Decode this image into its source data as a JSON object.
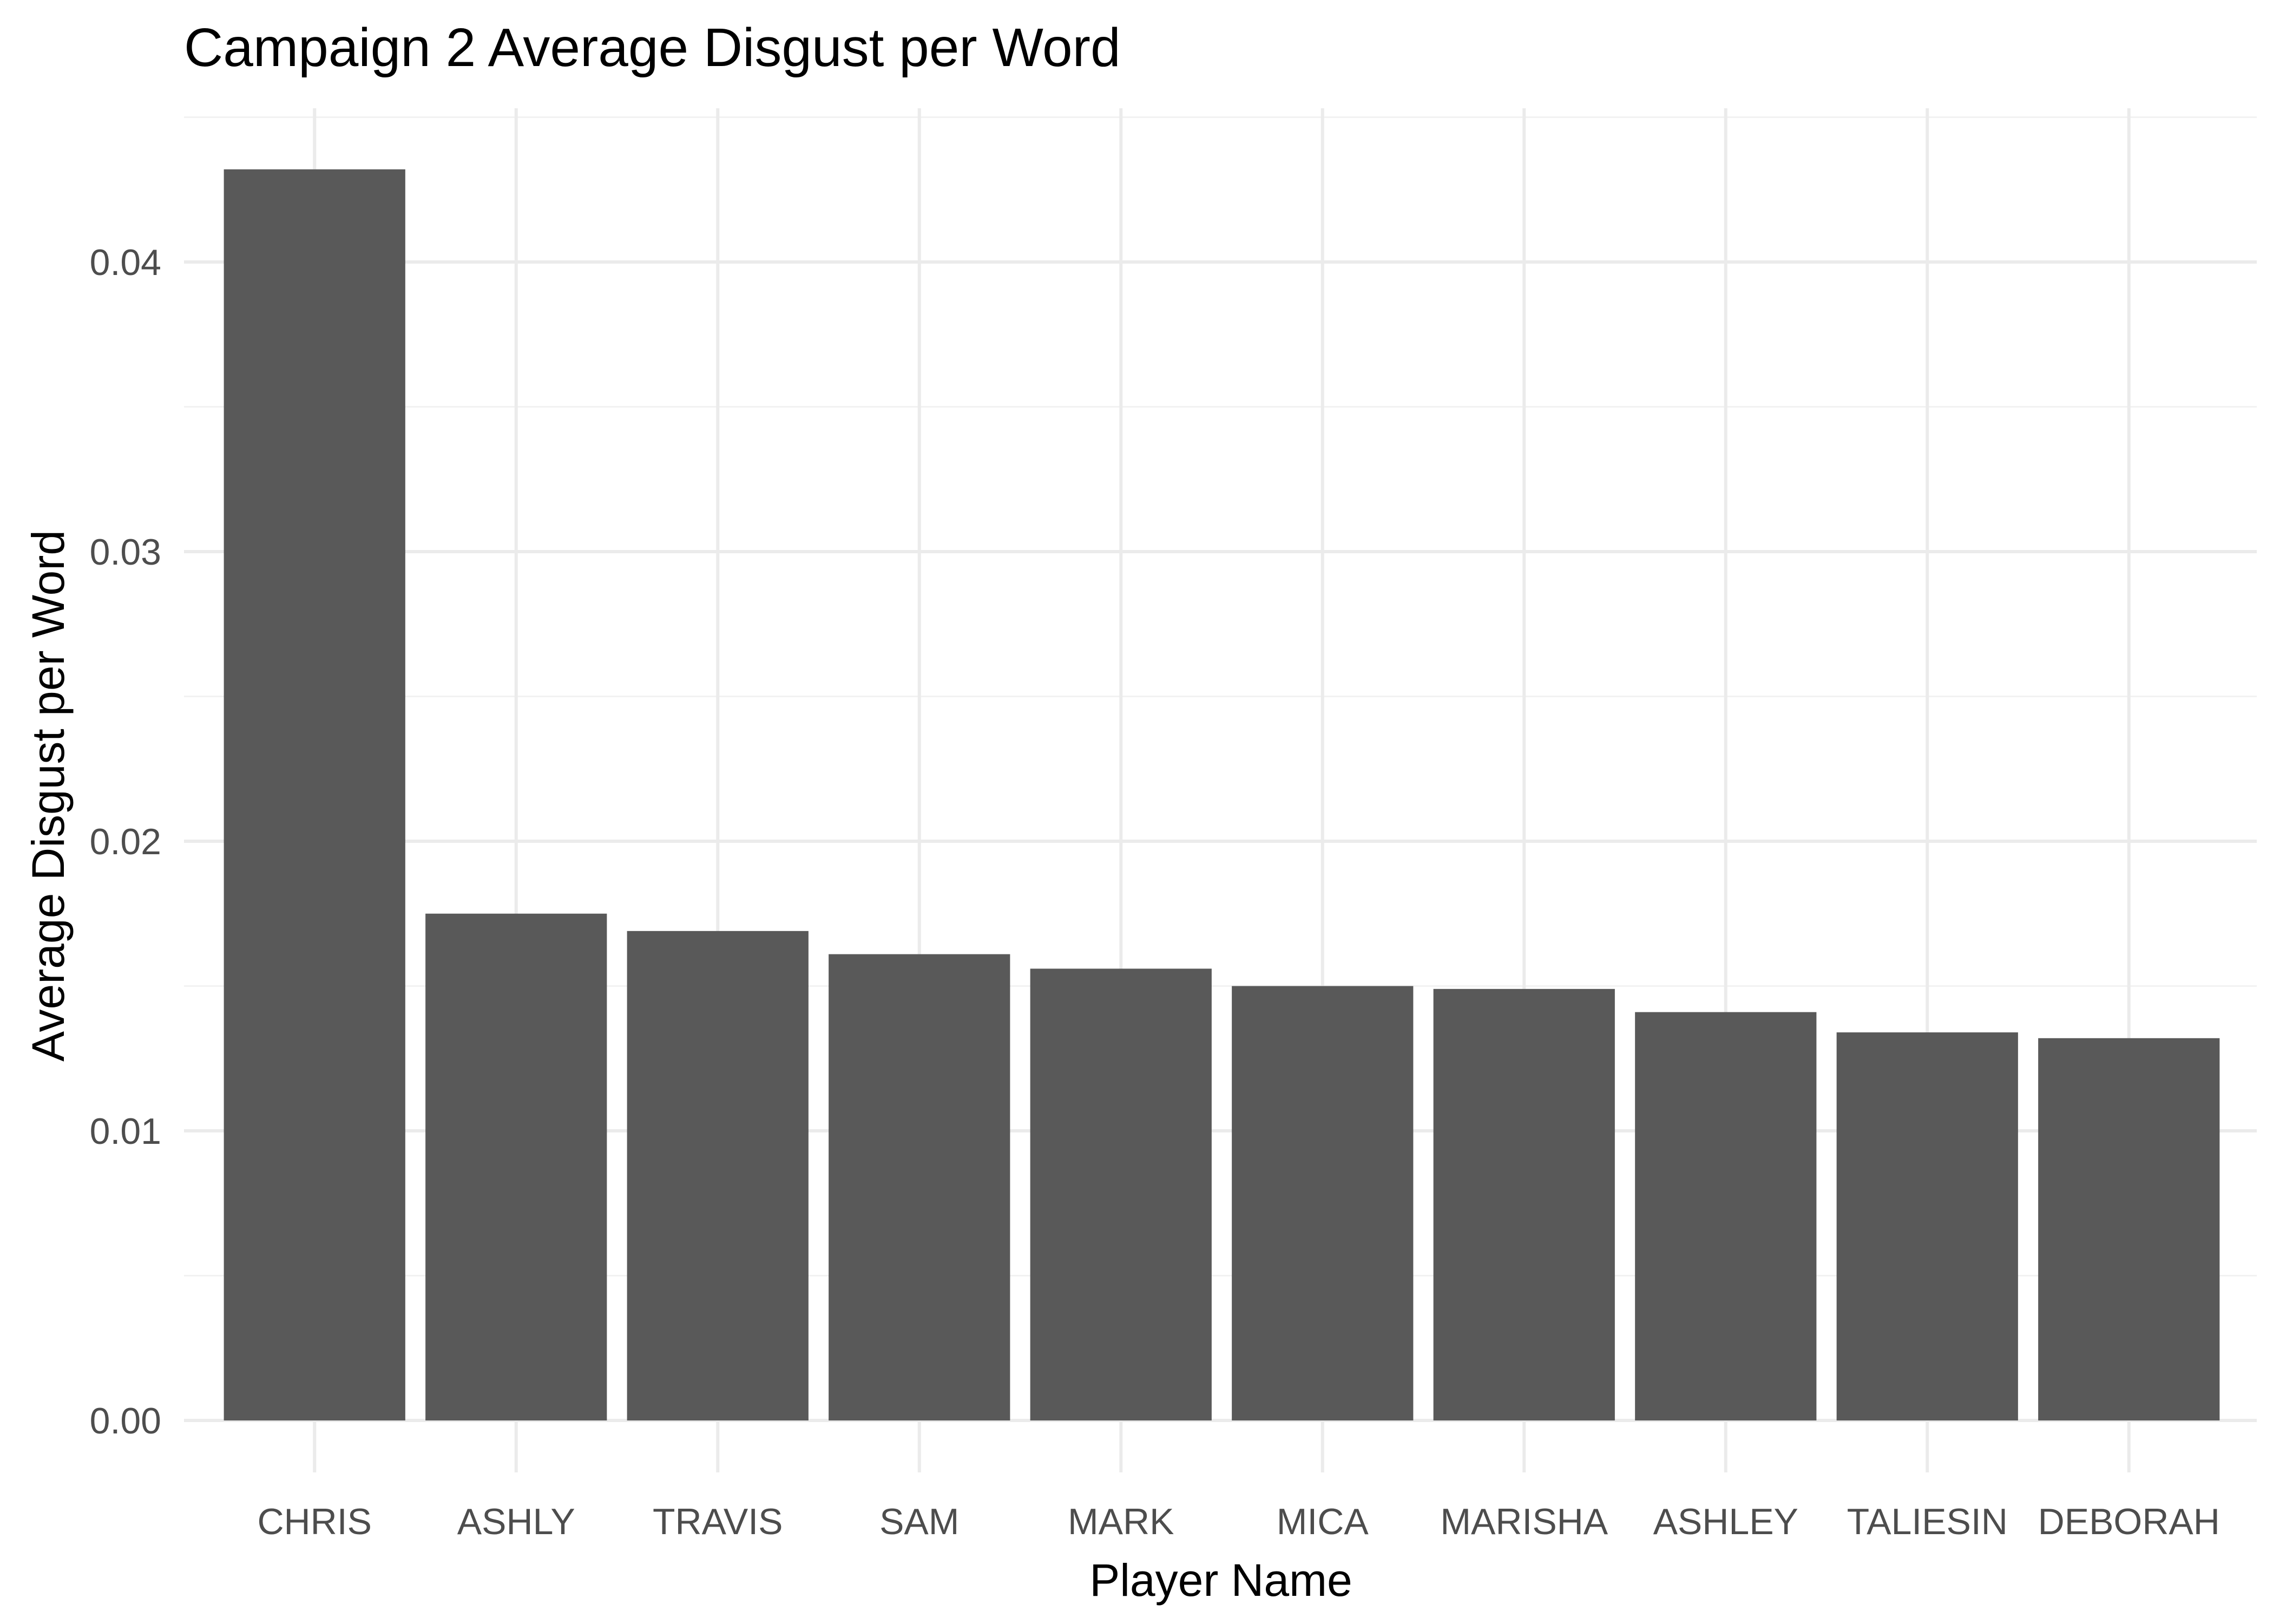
{
  "chart_data": {
    "type": "bar",
    "title": "Campaign 2 Average Disgust per Word",
    "xlabel": "Player Name",
    "ylabel": "Average Disgust per Word",
    "categories": [
      "CHRIS",
      "ASHLY",
      "TRAVIS",
      "SAM",
      "MARK",
      "MICA",
      "MARISHA",
      "ASHLEY",
      "TALIESIN",
      "DEBORAH"
    ],
    "values": [
      0.0432,
      0.0175,
      0.0169,
      0.0161,
      0.0156,
      0.015,
      0.0149,
      0.0141,
      0.0134,
      0.0132
    ],
    "ylim": [
      0,
      0.045
    ],
    "yticks": [
      0.0,
      0.01,
      0.02,
      0.03,
      0.04
    ],
    "ytick_labels": [
      "0.00",
      "0.01",
      "0.02",
      "0.03",
      "0.04"
    ],
    "grid": true,
    "legend": "none",
    "bar_color": "#595959",
    "grid_color": "#ebebeb",
    "background": "#ffffff"
  }
}
